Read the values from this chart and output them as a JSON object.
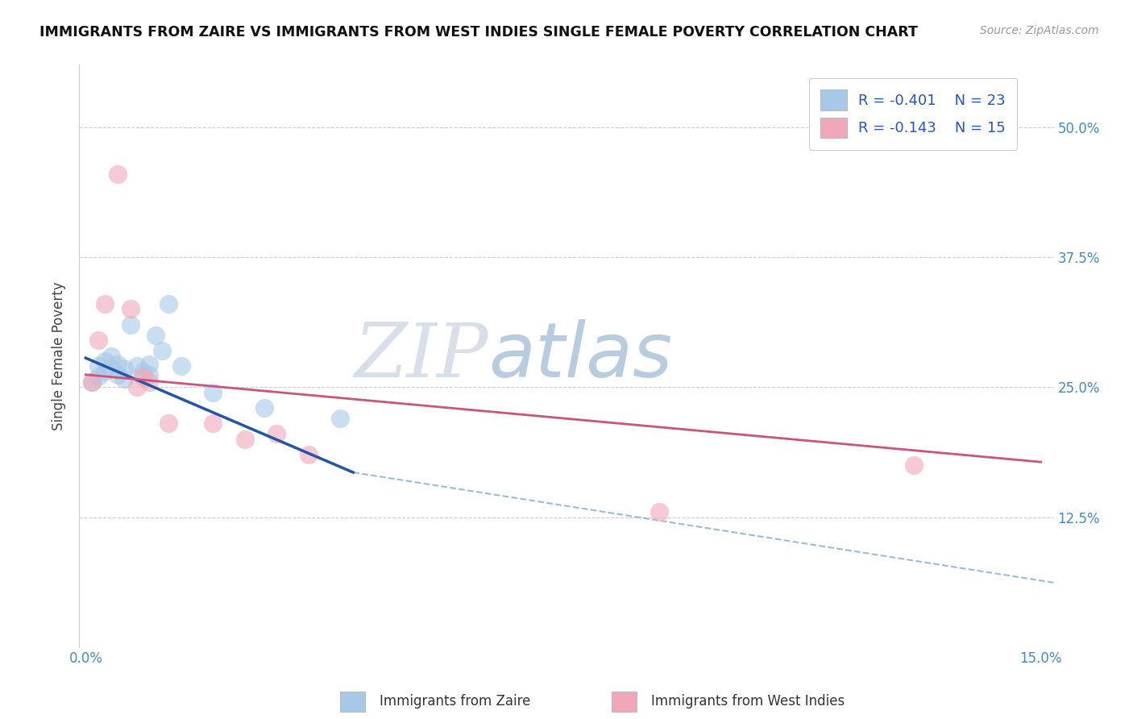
{
  "title": "IMMIGRANTS FROM ZAIRE VS IMMIGRANTS FROM WEST INDIES SINGLE FEMALE POVERTY CORRELATION CHART",
  "source_text": "Source: ZipAtlas.com",
  "ylabel": "Single Female Poverty",
  "xlim": [
    -0.001,
    0.152
  ],
  "ylim": [
    0.0,
    0.56
  ],
  "ytick_values": [
    0.0,
    0.125,
    0.25,
    0.375,
    0.5
  ],
  "ytick_labels": [
    "",
    "12.5%",
    "25.0%",
    "37.5%",
    "50.0%"
  ],
  "legend_r1": "-0.401",
  "legend_n1": "23",
  "legend_r2": "-0.143",
  "legend_n2": "15",
  "color_zaire": "#a8c8e8",
  "color_wi": "#f0a8b8",
  "color_line_zaire": "#2255aa",
  "color_line_wi": "#cc5577",
  "color_dashed": "#99bbdd",
  "watermark_zip": "ZIP",
  "watermark_atlas": "atlas",
  "watermark_color_zip": "#d8dfe8",
  "watermark_color_atlas": "#b8cce0",
  "zaire_x": [
    0.001,
    0.002,
    0.002,
    0.003,
    0.003,
    0.004,
    0.004,
    0.005,
    0.005,
    0.006,
    0.006,
    0.007,
    0.008,
    0.009,
    0.01,
    0.01,
    0.011,
    0.012,
    0.013,
    0.015,
    0.02,
    0.028,
    0.04
  ],
  "zaire_y": [
    0.255,
    0.26,
    0.27,
    0.265,
    0.275,
    0.268,
    0.28,
    0.262,
    0.272,
    0.258,
    0.268,
    0.31,
    0.27,
    0.265,
    0.262,
    0.272,
    0.3,
    0.285,
    0.33,
    0.27,
    0.245,
    0.23,
    0.22
  ],
  "wi_x": [
    0.001,
    0.002,
    0.003,
    0.005,
    0.007,
    0.008,
    0.009,
    0.01,
    0.013,
    0.02,
    0.025,
    0.03,
    0.035,
    0.09,
    0.13
  ],
  "wi_y": [
    0.255,
    0.295,
    0.33,
    0.455,
    0.325,
    0.25,
    0.26,
    0.255,
    0.215,
    0.215,
    0.2,
    0.205,
    0.185,
    0.13,
    0.175
  ],
  "blue_line_x": [
    0.0,
    0.042
  ],
  "blue_line_y": [
    0.278,
    0.168
  ],
  "pink_line_x": [
    0.0,
    0.15
  ],
  "pink_line_y": [
    0.262,
    0.178
  ],
  "dash_line_x": [
    0.042,
    0.152
  ],
  "dash_line_y": [
    0.168,
    0.062
  ],
  "bottom_legend_zaire": "Immigrants from Zaire",
  "bottom_legend_wi": "Immigrants from West Indies"
}
